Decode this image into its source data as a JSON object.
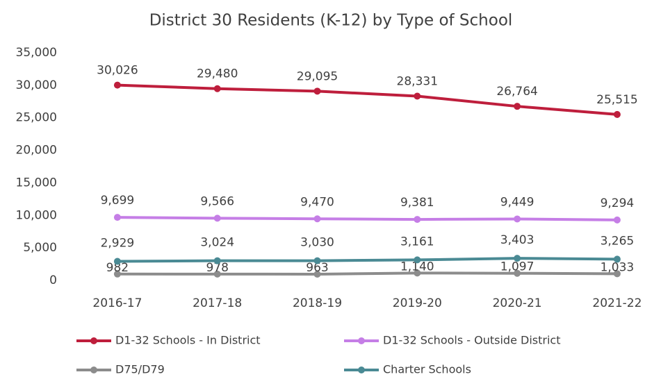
{
  "chart_data": {
    "type": "line",
    "title": "District 30 Residents (K-12) by Type of School",
    "categories": [
      "2016-17",
      "2017-18",
      "2018-19",
      "2019-20",
      "2020-21",
      "2021-22"
    ],
    "ylim": [
      0,
      35000
    ],
    "yticks": [
      0,
      {
        "value": 5000,
        "label": "5,000"
      },
      {
        "value": 10000,
        "label": "10,000"
      },
      {
        "value": 15000,
        "label": "15,000"
      },
      {
        "value": 20000,
        "label": "20,000"
      },
      {
        "value": 25000,
        "label": "25,000"
      },
      {
        "value": 30000,
        "label": "30,000"
      },
      {
        "value": 35000,
        "label": "35,000"
      }
    ],
    "grid": false,
    "series": [
      {
        "name": "D1-32 Schools - In District",
        "color": "#be1e3c",
        "values": [
          30026,
          29480,
          29095,
          28331,
          26764,
          25515
        ],
        "value_labels": [
          "30,026",
          "29,480",
          "29,095",
          "28,331",
          "26,764",
          "25,515"
        ]
      },
      {
        "name": "D1-32 Schools - Outside District",
        "color": "#c57ee6",
        "values": [
          9699,
          9566,
          9470,
          9381,
          9449,
          9294
        ],
        "value_labels": [
          "9,699",
          "9,566",
          "9,470",
          "9,381",
          "9,449",
          "9,294"
        ]
      },
      {
        "name": "D75/D79",
        "color": "#8c8c8c",
        "values": [
          982,
          978,
          963,
          1140,
          1097,
          1033
        ],
        "value_labels": [
          "982",
          "978",
          "963",
          "1,140",
          "1,097",
          "1,033"
        ]
      },
      {
        "name": "Charter Schools",
        "color": "#4a8a94",
        "values": [
          2929,
          3024,
          3030,
          3161,
          3403,
          3265
        ],
        "value_labels": [
          "2,929",
          "3,024",
          "3,030",
          "3,161",
          "3,403",
          "3,265"
        ]
      }
    ]
  }
}
